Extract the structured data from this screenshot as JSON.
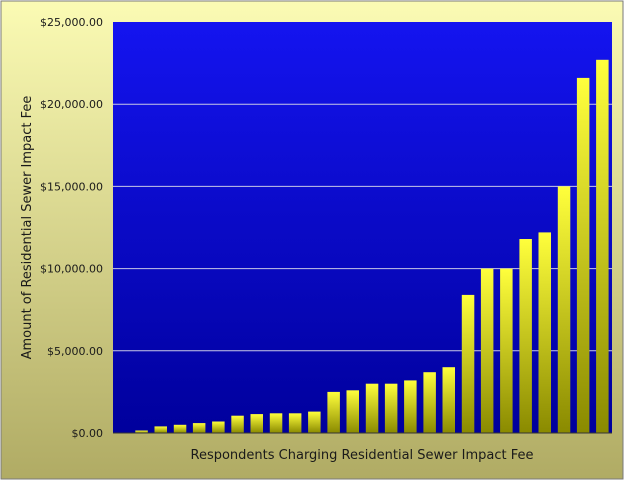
{
  "chart_data": {
    "type": "bar",
    "title": "",
    "xlabel": "Respondents Charging Residential Sewer Impact Fee",
    "ylabel": "Amount of Residential Sewer Impact Fee",
    "ylim": [
      0,
      25000
    ],
    "yticks": [
      "$0.00",
      "$5,000.00",
      "$10,000.00",
      "$15,000.00",
      "$20,000.00",
      "$25,000.00"
    ],
    "ytick_values": [
      0,
      5000,
      10000,
      15000,
      20000,
      25000
    ],
    "grid": true,
    "legend": "none",
    "values": [
      150,
      400,
      500,
      600,
      700,
      1050,
      1150,
      1200,
      1200,
      1300,
      2500,
      2600,
      3000,
      3000,
      3200,
      3700,
      4000,
      8400,
      10000,
      10000,
      11800,
      12200,
      15000,
      21600,
      22700
    ]
  },
  "colors": {
    "outer_background_top": "#fbfbb4",
    "outer_background_bottom": "#b0ab64",
    "plot_background_top": "#1414f0",
    "plot_background_bottom": "#00009c",
    "bar_top": "#ffff3c",
    "bar_bottom": "#8a8a00",
    "gridline": "#c8c8e6"
  }
}
